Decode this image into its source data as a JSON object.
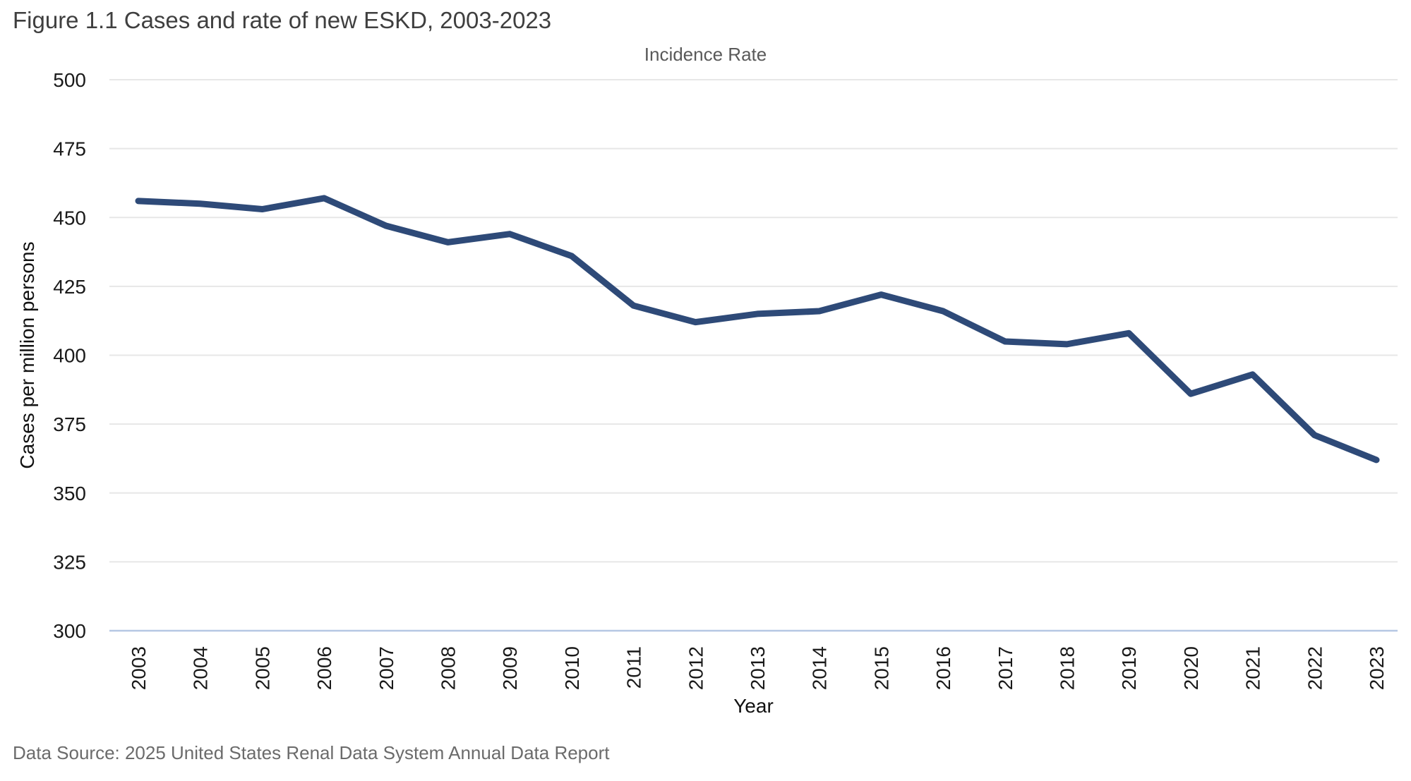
{
  "figure": {
    "title": "Figure 1.1 Cases and rate of new ESKD, 2003-2023",
    "subtitle": "Incidence Rate",
    "footer": "Data Source: 2025 United States Renal Data System Annual Data Report"
  },
  "colors": {
    "line": "#2e4a78",
    "gridline": "#e7e7e7",
    "axis_line": "#b6c7e3",
    "tick_label": "#1a1a1a",
    "title": "#3f3f3f",
    "subtitle": "#595959",
    "footer": "#6b6b6b"
  },
  "chart_data": {
    "type": "line",
    "title": "Figure 1.1 Cases and rate of new ESKD, 2003-2023",
    "subtitle": "Incidence Rate",
    "xlabel": "Year",
    "ylabel": "Cases per million persons",
    "categories": [
      "2003",
      "2004",
      "2005",
      "2006",
      "2007",
      "2008",
      "2009",
      "2010",
      "2011",
      "2012",
      "2013",
      "2014",
      "2015",
      "2016",
      "2017",
      "2018",
      "2019",
      "2020",
      "2021",
      "2022",
      "2023"
    ],
    "series": [
      {
        "name": "Incidence Rate",
        "values": [
          456,
          455,
          453,
          457,
          447,
          441,
          444,
          436,
          418,
          412,
          415,
          416,
          422,
          416,
          405,
          404,
          408,
          386,
          393,
          371,
          362
        ]
      }
    ],
    "ylim": [
      300,
      500
    ],
    "yticks": [
      300,
      325,
      350,
      375,
      400,
      425,
      450,
      475,
      500
    ],
    "grid": true,
    "legend_position": "none",
    "source_note": "Data Source: 2025 United States Renal Data System Annual Data Report"
  }
}
